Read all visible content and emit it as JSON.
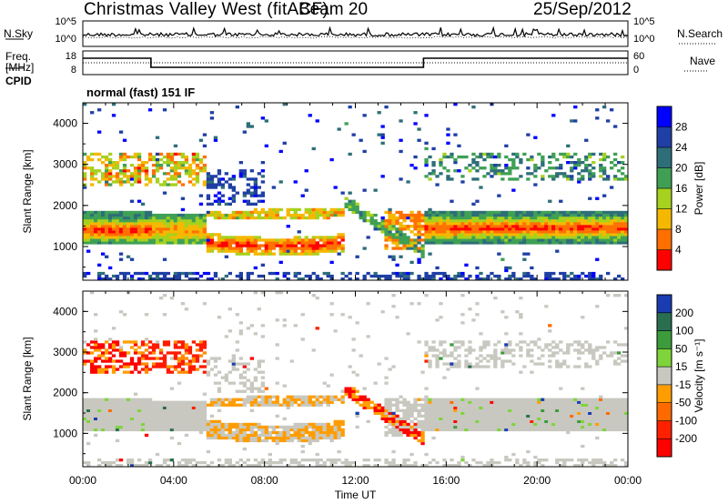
{
  "header": {
    "site": "Christmas Valley West (fitACF)",
    "beam": "Beam 20",
    "date": "25/Sep/2012"
  },
  "panels": {
    "nsky": {
      "label": "N.Sky",
      "ticks": [
        "10^5",
        "10^0"
      ]
    },
    "nsearch": {
      "label": "N.Search",
      "ticks": [
        "10^5",
        "10^0"
      ]
    },
    "freq": {
      "label_top": "Freq.",
      "label_bottom": "[MHz]",
      "ticks": [
        "18",
        "8"
      ]
    },
    "nave": {
      "label": "Nave",
      "ticks": [
        "60",
        "0"
      ]
    },
    "cpid": {
      "label": "CPID",
      "mode": "normal (fast) 151 IF"
    }
  },
  "chart_data": [
    {
      "type": "heatmap",
      "name": "power",
      "ylabel": "Slant Range [km]",
      "yticks": [
        1000,
        2000,
        3000,
        4000
      ],
      "ylim": [
        180,
        4500
      ],
      "xlim": [
        0,
        24
      ],
      "colorbar": {
        "label": "Power [dB]",
        "ticks": [
          4,
          8,
          12,
          16,
          20,
          24,
          28
        ],
        "colors": [
          "#0000ff",
          "#1f3fa5",
          "#2e6e78",
          "#3fa055",
          "#a6d11e",
          "#f5b800",
          "#ff7000",
          "#ff0000"
        ]
      }
    },
    {
      "type": "heatmap",
      "name": "velocity",
      "ylabel": "Slant Range [km]",
      "yticks": [
        1000,
        2000,
        3000,
        4000
      ],
      "ylim": [
        180,
        4500
      ],
      "xlim": [
        0,
        24
      ],
      "xlabel": "Time UT",
      "xticks": [
        "00:00",
        "04:00",
        "08:00",
        "12:00",
        "16:00",
        "20:00",
        "00:00"
      ],
      "colorbar": {
        "label": "Velocity [m s⁻¹]",
        "ticks": [
          "200",
          "100",
          "50",
          "15",
          "-15",
          "-50",
          "-100",
          "-200"
        ],
        "colors": [
          "#1a3cb0",
          "#2a6e50",
          "#3c9c3c",
          "#7ed43a",
          "#c8c8c0",
          "#ff9d00",
          "#ff6a00",
          "#ff2000",
          "#ff0000"
        ]
      }
    }
  ]
}
